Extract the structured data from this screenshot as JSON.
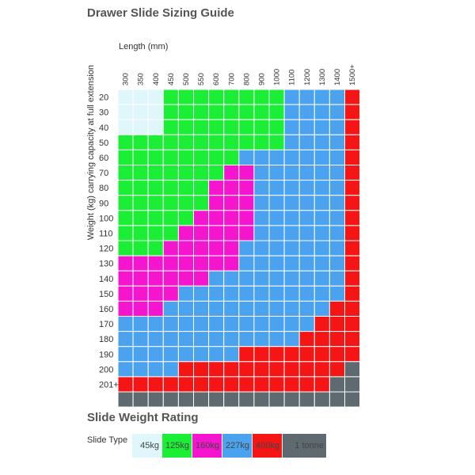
{
  "title": "Drawer Slide Sizing Guide",
  "legend_title": "Slide Weight Rating",
  "legend_label": "Slide Type",
  "chart_data": {
    "type": "heatmap",
    "xlabel": "Length (mm)",
    "ylabel": "Weight (kg) carrying capacity at full extension",
    "x_categories": [
      "300",
      "350",
      "400",
      "450",
      "500",
      "550",
      "600",
      "700",
      "800",
      "900",
      "1000",
      "1100",
      "1200",
      "1300",
      "1400",
      "1500+"
    ],
    "y_categories": [
      "20",
      "30",
      "40",
      "50",
      "60",
      "70",
      "80",
      "90",
      "100",
      "110",
      "120",
      "130",
      "140",
      "150",
      "160",
      "170",
      "180",
      "190",
      "200",
      "201+",
      ""
    ],
    "ratings": [
      {
        "label": "45kg",
        "color": "#dff7fb"
      },
      {
        "label": "125kg",
        "color": "#1aef35"
      },
      {
        "label": "160kg",
        "color": "#f515cf"
      },
      {
        "label": "227kg",
        "color": "#4ba3f0"
      },
      {
        "label": "400kg",
        "color": "#f51515"
      },
      {
        "label": "1 tonne",
        "color": "#5e6a6f"
      }
    ],
    "grid": [
      [
        0,
        0,
        0,
        1,
        1,
        1,
        1,
        1,
        1,
        1,
        1,
        3,
        3,
        3,
        3,
        4
      ],
      [
        0,
        0,
        0,
        1,
        1,
        1,
        1,
        1,
        1,
        1,
        1,
        3,
        3,
        3,
        3,
        4
      ],
      [
        0,
        0,
        0,
        1,
        1,
        1,
        1,
        1,
        1,
        1,
        1,
        3,
        3,
        3,
        3,
        4
      ],
      [
        1,
        1,
        1,
        1,
        1,
        1,
        1,
        1,
        1,
        1,
        1,
        3,
        3,
        3,
        3,
        4
      ],
      [
        1,
        1,
        1,
        1,
        1,
        1,
        1,
        1,
        3,
        3,
        3,
        3,
        3,
        3,
        3,
        4
      ],
      [
        1,
        1,
        1,
        1,
        1,
        1,
        1,
        2,
        2,
        3,
        3,
        3,
        3,
        3,
        3,
        4
      ],
      [
        1,
        1,
        1,
        1,
        1,
        1,
        2,
        2,
        2,
        3,
        3,
        3,
        3,
        3,
        3,
        4
      ],
      [
        1,
        1,
        1,
        1,
        1,
        1,
        2,
        2,
        2,
        3,
        3,
        3,
        3,
        3,
        3,
        4
      ],
      [
        1,
        1,
        1,
        1,
        1,
        2,
        2,
        2,
        2,
        3,
        3,
        3,
        3,
        3,
        3,
        4
      ],
      [
        1,
        1,
        1,
        1,
        2,
        2,
        2,
        2,
        2,
        3,
        3,
        3,
        3,
        3,
        3,
        4
      ],
      [
        1,
        1,
        1,
        2,
        2,
        2,
        2,
        2,
        3,
        3,
        3,
        3,
        3,
        3,
        3,
        4
      ],
      [
        2,
        2,
        2,
        2,
        2,
        2,
        2,
        2,
        3,
        3,
        3,
        3,
        3,
        3,
        3,
        4
      ],
      [
        2,
        2,
        2,
        2,
        2,
        2,
        3,
        3,
        3,
        3,
        3,
        3,
        3,
        3,
        3,
        4
      ],
      [
        2,
        2,
        2,
        2,
        3,
        3,
        3,
        3,
        3,
        3,
        3,
        3,
        3,
        3,
        3,
        4
      ],
      [
        2,
        2,
        2,
        3,
        3,
        3,
        3,
        3,
        3,
        3,
        3,
        3,
        3,
        3,
        4,
        4
      ],
      [
        3,
        3,
        3,
        3,
        3,
        3,
        3,
        3,
        3,
        3,
        3,
        3,
        3,
        4,
        4,
        4
      ],
      [
        3,
        3,
        3,
        3,
        3,
        3,
        3,
        3,
        3,
        3,
        3,
        3,
        4,
        4,
        4,
        4
      ],
      [
        3,
        3,
        3,
        3,
        3,
        3,
        3,
        3,
        4,
        4,
        4,
        4,
        4,
        4,
        4,
        4
      ],
      [
        3,
        3,
        3,
        3,
        4,
        4,
        4,
        4,
        4,
        4,
        4,
        4,
        4,
        4,
        4,
        5
      ],
      [
        4,
        4,
        4,
        4,
        4,
        4,
        4,
        4,
        4,
        4,
        4,
        4,
        4,
        4,
        5,
        5
      ],
      [
        5,
        5,
        5,
        5,
        5,
        5,
        5,
        5,
        5,
        5,
        5,
        5,
        5,
        5,
        5,
        5
      ]
    ]
  }
}
